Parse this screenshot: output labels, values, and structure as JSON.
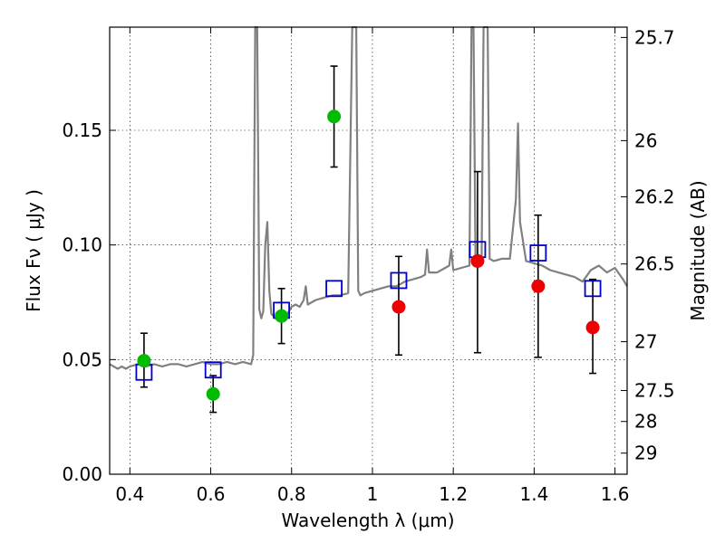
{
  "chart_data": {
    "type": "scatter",
    "xlabel": "Wavelength  λ (μm)",
    "ylabel": "Flux  Fν  ( μJy )",
    "ylabel_right": "Magnitude (AB)",
    "xlim": [
      0.35,
      1.63
    ],
    "ylim": [
      0.0,
      0.195
    ],
    "x_ticks": [
      0.4,
      0.6,
      0.8,
      1.0,
      1.2,
      1.4,
      1.6
    ],
    "x_tick_labels": [
      "0.4",
      "0.6",
      "0.8",
      "1",
      "1.2",
      "1.4",
      "1.6"
    ],
    "y_ticks": [
      0.0,
      0.05,
      0.1,
      0.15
    ],
    "y_tick_labels": [
      "0.00",
      "0.05",
      "0.10",
      "0.15"
    ],
    "right_ticks": [
      {
        "label": "25.7",
        "flux": 0.1905
      },
      {
        "label": "26",
        "flux": 0.1455
      },
      {
        "label": "26.2",
        "flux": 0.121
      },
      {
        "label": "26.5",
        "flux": 0.0917
      },
      {
        "label": "27",
        "flux": 0.0578
      },
      {
        "label": "27.5",
        "flux": 0.0365
      },
      {
        "label": "28",
        "flux": 0.023
      },
      {
        "label": "29",
        "flux": 0.0092
      }
    ],
    "grid": true,
    "colors": {
      "spectrum": "#808080",
      "green_points": "#00bb00",
      "red_points": "#ee0000",
      "model_squares": "#0000cc",
      "error_bars": "#000000"
    },
    "series": [
      {
        "marker": "circle-green",
        "points": [
          {
            "x": 0.435,
            "y": 0.0495,
            "lo": 0.038,
            "hi": 0.0615
          },
          {
            "x": 0.606,
            "y": 0.035,
            "lo": 0.027,
            "hi": 0.043
          },
          {
            "x": 0.775,
            "y": 0.069,
            "lo": 0.057,
            "hi": 0.081
          },
          {
            "x": 0.905,
            "y": 0.156,
            "lo": 0.134,
            "hi": 0.178
          }
        ]
      },
      {
        "marker": "circle-red",
        "points": [
          {
            "x": 1.065,
            "y": 0.073,
            "lo": 0.052,
            "hi": 0.095
          },
          {
            "x": 1.26,
            "y": 0.093,
            "lo": 0.053,
            "hi": 0.132
          },
          {
            "x": 1.41,
            "y": 0.082,
            "lo": 0.051,
            "hi": 0.113
          },
          {
            "x": 1.545,
            "y": 0.064,
            "lo": 0.044,
            "hi": 0.085
          }
        ]
      },
      {
        "marker": "square-blue",
        "points": [
          {
            "x": 0.435,
            "y": 0.0445
          },
          {
            "x": 0.606,
            "y": 0.0455
          },
          {
            "x": 0.775,
            "y": 0.0715
          },
          {
            "x": 0.905,
            "y": 0.081
          },
          {
            "x": 1.065,
            "y": 0.0845
          },
          {
            "x": 1.26,
            "y": 0.098
          },
          {
            "x": 1.41,
            "y": 0.0965
          },
          {
            "x": 1.545,
            "y": 0.081
          }
        ]
      },
      {
        "marker": "spectrum-line",
        "x": [
          0.35,
          0.36,
          0.37,
          0.38,
          0.39,
          0.4,
          0.42,
          0.44,
          0.46,
          0.48,
          0.5,
          0.52,
          0.54,
          0.56,
          0.58,
          0.6,
          0.62,
          0.64,
          0.66,
          0.68,
          0.7,
          0.705,
          0.71,
          0.715,
          0.72,
          0.725,
          0.73,
          0.735,
          0.74,
          0.745,
          0.75,
          0.76,
          0.77,
          0.78,
          0.79,
          0.8,
          0.81,
          0.82,
          0.83,
          0.835,
          0.84,
          0.85,
          0.86,
          0.88,
          0.9,
          0.92,
          0.94,
          0.95,
          0.955,
          0.96,
          0.965,
          0.97,
          0.98,
          1.0,
          1.02,
          1.04,
          1.06,
          1.08,
          1.1,
          1.12,
          1.13,
          1.135,
          1.14,
          1.16,
          1.18,
          1.19,
          1.195,
          1.2,
          1.22,
          1.24,
          1.245,
          1.25,
          1.255,
          1.26,
          1.27,
          1.275,
          1.28,
          1.285,
          1.29,
          1.3,
          1.32,
          1.34,
          1.355,
          1.36,
          1.365,
          1.38,
          1.4,
          1.42,
          1.44,
          1.46,
          1.48,
          1.5,
          1.52,
          1.54,
          1.56,
          1.58,
          1.6,
          1.62,
          1.63
        ],
        "y": [
          0.048,
          0.047,
          0.046,
          0.047,
          0.046,
          0.047,
          0.048,
          0.047,
          0.048,
          0.047,
          0.048,
          0.048,
          0.047,
          0.048,
          0.049,
          0.048,
          0.048,
          0.049,
          0.048,
          0.049,
          0.048,
          0.052,
          0.2,
          0.2,
          0.072,
          0.068,
          0.071,
          0.1,
          0.11,
          0.08,
          0.07,
          0.068,
          0.07,
          0.071,
          0.07,
          0.073,
          0.074,
          0.073,
          0.076,
          0.082,
          0.074,
          0.075,
          0.076,
          0.077,
          0.078,
          0.078,
          0.079,
          0.2,
          0.2,
          0.2,
          0.08,
          0.078,
          0.079,
          0.08,
          0.081,
          0.082,
          0.082,
          0.084,
          0.085,
          0.086,
          0.087,
          0.098,
          0.088,
          0.088,
          0.09,
          0.091,
          0.098,
          0.089,
          0.09,
          0.091,
          0.2,
          0.2,
          0.093,
          0.092,
          0.092,
          0.2,
          0.2,
          0.2,
          0.094,
          0.093,
          0.094,
          0.094,
          0.12,
          0.153,
          0.11,
          0.093,
          0.092,
          0.091,
          0.089,
          0.088,
          0.087,
          0.086,
          0.084,
          0.089,
          0.091,
          0.088,
          0.09,
          0.085,
          0.082
        ]
      }
    ]
  }
}
